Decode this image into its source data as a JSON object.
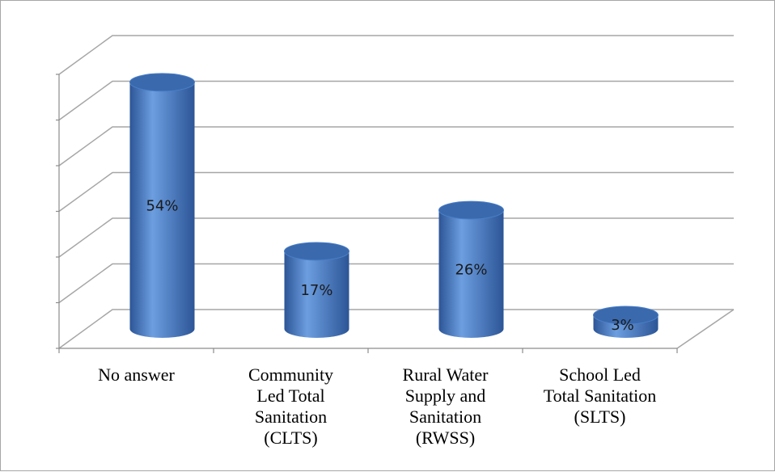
{
  "chart_data": {
    "type": "bar",
    "style": "3d-cylinder",
    "categories": [
      [
        "No answer"
      ],
      [
        "Community",
        "Led Total",
        "Sanitation",
        "(CLTS)"
      ],
      [
        "Rural Water",
        "Supply and",
        "Sanitation",
        "(RWSS)"
      ],
      [
        "School Led",
        "Total Sanitation",
        "(SLTS)"
      ]
    ],
    "values": [
      54,
      17,
      26,
      3
    ],
    "data_labels": [
      "54%",
      "17%",
      "26%",
      "3%"
    ],
    "ylim": [
      0,
      60
    ],
    "ytick_step": 10,
    "y_tick_labels_visible": false,
    "grid": true,
    "legend": "none",
    "title": "",
    "xlabel": "",
    "ylabel": "",
    "colors": {
      "bar_fill": "#4a7fc8",
      "bar_dark": "#2c5596",
      "bar_light": "#6c9ee0",
      "bar_top": "#3a69ad",
      "grid": "#a6a6a6",
      "axis": "#8c8c8c",
      "border": "#a6a6a6"
    }
  }
}
